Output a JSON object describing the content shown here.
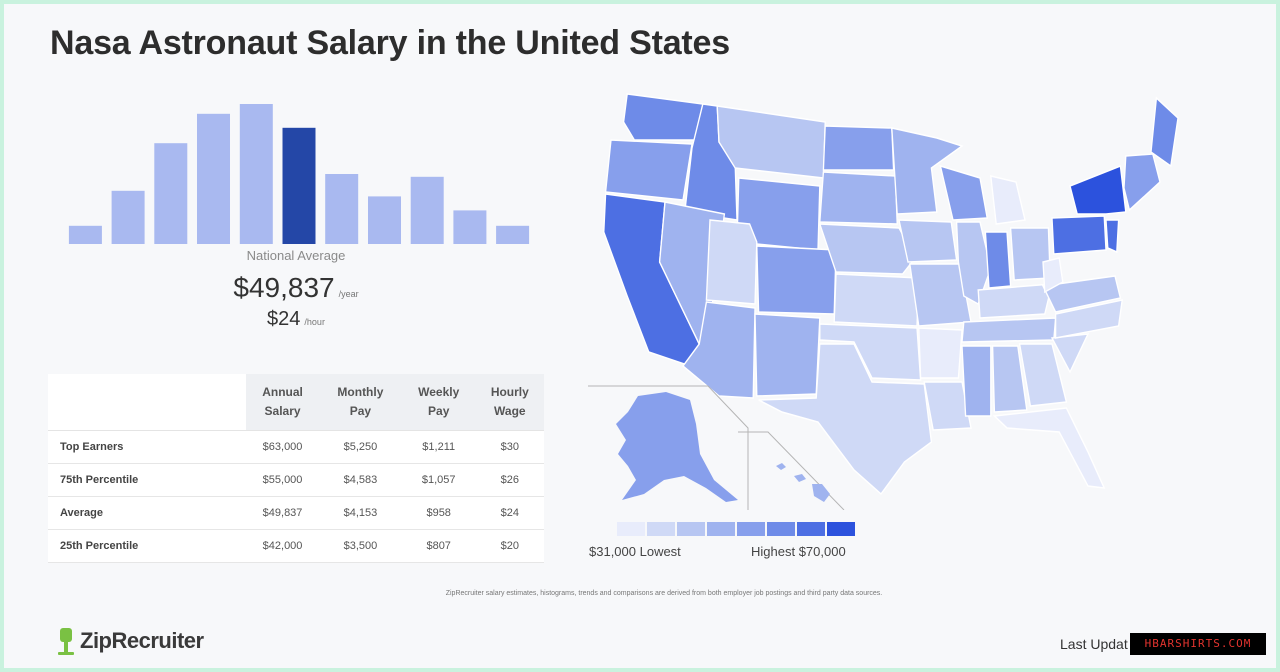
{
  "title": "Nasa Astronaut Salary in the United States",
  "histogram": {
    "bar_heights_relative": [
      0.13,
      0.38,
      0.72,
      0.93,
      1.0,
      0.83,
      0.5,
      0.34,
      0.48,
      0.24,
      0.13
    ],
    "highlight_index": 5,
    "color_normal": "#a9b9f0",
    "color_highlight": "#2447a7"
  },
  "national_average": {
    "label": "National Average",
    "annual": "$49,837",
    "annual_unit": "/year",
    "hourly": "$24",
    "hourly_unit": "/hour"
  },
  "table": {
    "headers": [
      [
        "Annual",
        "Salary"
      ],
      [
        "Monthly",
        "Pay"
      ],
      [
        "Weekly",
        "Pay"
      ],
      [
        "Hourly",
        "Wage"
      ]
    ],
    "rows": [
      {
        "label": "Top Earners",
        "values": [
          "$63,000",
          "$5,250",
          "$1,211",
          "$30"
        ]
      },
      {
        "label": "75th Percentile",
        "values": [
          "$55,000",
          "$4,583",
          "$1,057",
          "$26"
        ]
      },
      {
        "label": "Average",
        "values": [
          "$49,837",
          "$4,153",
          "$958",
          "$24"
        ]
      },
      {
        "label": "25th Percentile",
        "values": [
          "$42,000",
          "$3,500",
          "$807",
          "$20"
        ]
      }
    ]
  },
  "map": {
    "palette": [
      "#e8ecfb",
      "#cfd9f6",
      "#b7c6f2",
      "#9fb3ef",
      "#879fec",
      "#6e8be8",
      "#4d6fe3",
      "#2c52dd"
    ],
    "legend_low": "$31,000 Lowest",
    "legend_high": "Highest $70,000"
  },
  "footnote": "ZipRecruiter salary estimates, histograms, trends and comparisons are derived from both employer job postings and third party data sources.",
  "brand": "ZipRecruiter",
  "last_updated": "Last Updat",
  "watermark": "HBARSHIRTS.COM",
  "colors": {
    "brand_green": "#7ac143",
    "border_mint": "#c9f2de"
  }
}
